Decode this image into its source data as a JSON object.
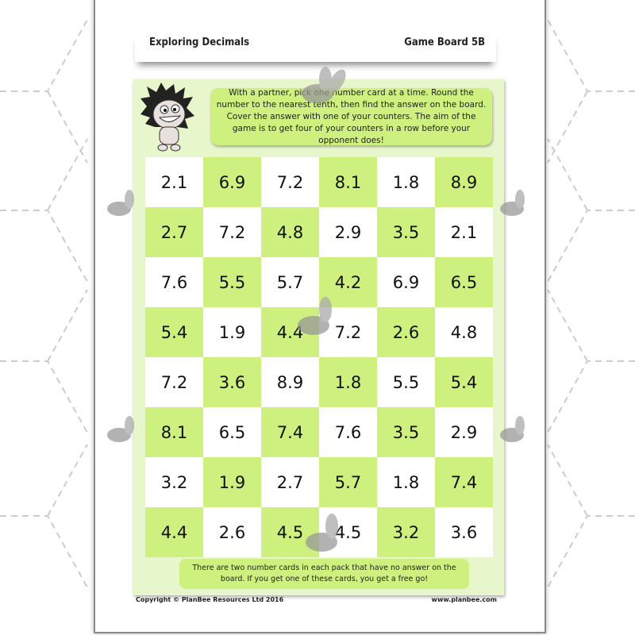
{
  "header": {
    "title": "Exploring Decimals",
    "board": "Game Board 5B"
  },
  "instructions": "With a partner, pick one number card at a time. Round the number to the nearest tenth, then find the answer on the board. Cover the answer with one of your counters. The aim of the game is to get four of your counters in a row before your opponent does!",
  "board": [
    [
      "2.1",
      "6.9",
      "7.2",
      "8.1",
      "1.8",
      "8.9"
    ],
    [
      "2.7",
      "7.2",
      "4.8",
      "2.9",
      "3.5",
      "2.1"
    ],
    [
      "7.6",
      "5.5",
      "5.7",
      "4.2",
      "6.9",
      "6.5"
    ],
    [
      "5.4",
      "1.9",
      "4.4",
      "7.2",
      "2.6",
      "4.8"
    ],
    [
      "7.2",
      "3.6",
      "8.9",
      "1.8",
      "5.5",
      "5.4"
    ],
    [
      "8.1",
      "6.5",
      "7.4",
      "7.6",
      "3.5",
      "2.9"
    ],
    [
      "3.2",
      "1.9",
      "2.7",
      "5.7",
      "1.8",
      "7.4"
    ],
    [
      "4.4",
      "2.6",
      "4.5",
      "4.5",
      "3.2",
      "3.6"
    ]
  ],
  "note": "There are two number cards in each pack that have no answer on the board. If you get one of these cards, you get a free go!",
  "footer": {
    "copyright": "Copyright © PlanBee Resources Ltd 2016",
    "website": "www.planbee.com"
  },
  "colors": {
    "cell_green": "#cdf07e",
    "panel": "#e8f6cc"
  }
}
